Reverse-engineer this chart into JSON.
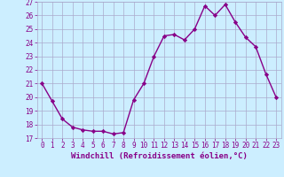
{
  "x": [
    0,
    1,
    2,
    3,
    4,
    5,
    6,
    7,
    8,
    9,
    10,
    11,
    12,
    13,
    14,
    15,
    16,
    17,
    18,
    19,
    20,
    21,
    22,
    23
  ],
  "y": [
    21.0,
    19.7,
    18.4,
    17.8,
    17.6,
    17.5,
    17.5,
    17.3,
    17.4,
    19.8,
    21.0,
    23.0,
    24.5,
    24.6,
    24.2,
    25.0,
    26.7,
    26.0,
    26.8,
    25.5,
    24.4,
    23.7,
    21.7,
    20.0
  ],
  "line_color": "#880088",
  "marker": "D",
  "marker_size": 2.2,
  "bg_color": "#cceeff",
  "grid_color": "#aaaacc",
  "xlabel": "Windchill (Refroidissement éolien,°C)",
  "xlim": [
    -0.5,
    23.5
  ],
  "ylim": [
    17,
    27
  ],
  "yticks": [
    17,
    18,
    19,
    20,
    21,
    22,
    23,
    24,
    25,
    26,
    27
  ],
  "xticks": [
    0,
    1,
    2,
    3,
    4,
    5,
    6,
    7,
    8,
    9,
    10,
    11,
    12,
    13,
    14,
    15,
    16,
    17,
    18,
    19,
    20,
    21,
    22,
    23
  ],
  "xlabel_color": "#880088",
  "tick_color": "#880088",
  "line_width": 1.0,
  "tick_fontsize": 5.5,
  "ylabel_fontsize": 6,
  "xlabel_fontsize": 6.5
}
